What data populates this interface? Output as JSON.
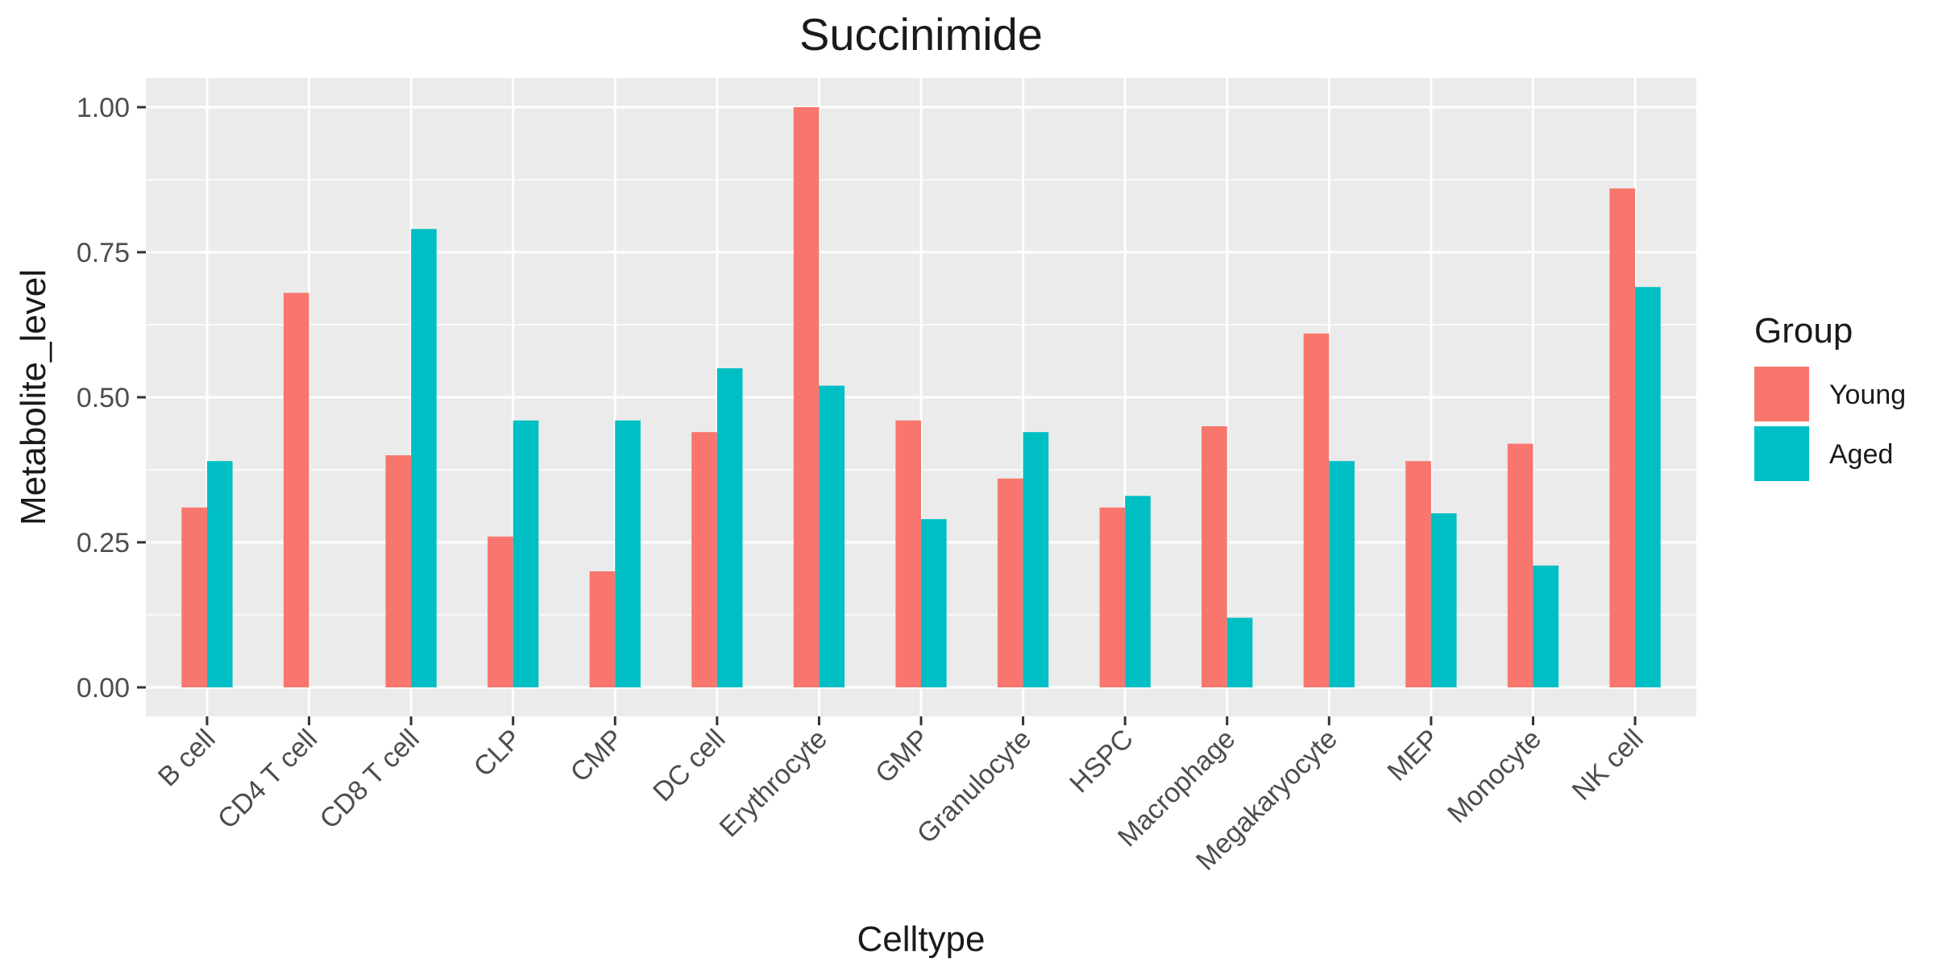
{
  "chart_data": {
    "type": "bar",
    "title": "Succinimide",
    "xlabel": "Celltype",
    "ylabel": "Metabolite_level",
    "categories": [
      "B cell",
      "CD4 T cell",
      "CD8 T cell",
      "CLP",
      "CMP",
      "DC cell",
      "Erythrocyte",
      "GMP",
      "Granulocyte",
      "HSPC",
      "Macrophage",
      "Megakaryocyte",
      "MEP",
      "Monocyte",
      "NK cell"
    ],
    "series": [
      {
        "name": "Young",
        "color": "#F8766D",
        "values": [
          0.31,
          0.68,
          0.4,
          0.26,
          0.2,
          0.44,
          1.0,
          0.46,
          0.36,
          0.31,
          0.45,
          0.61,
          0.39,
          0.42,
          0.86
        ]
      },
      {
        "name": "Aged",
        "color": "#00BFC4",
        "values": [
          0.39,
          null,
          0.79,
          0.46,
          0.46,
          0.55,
          0.52,
          0.29,
          0.44,
          0.33,
          0.12,
          0.39,
          0.3,
          0.21,
          0.69
        ]
      }
    ],
    "ylim": [
      -0.05,
      1.05
    ],
    "yticks": [
      0.0,
      0.25,
      0.5,
      0.75,
      1.0
    ],
    "ytick_labels": [
      "0.00",
      "0.25",
      "0.50",
      "0.75",
      "1.00"
    ],
    "grid": true,
    "legend": {
      "title": "Group",
      "placement": "right"
    },
    "colors": {
      "panel": "#EBEBEB",
      "grid": "#FFFFFF"
    }
  }
}
